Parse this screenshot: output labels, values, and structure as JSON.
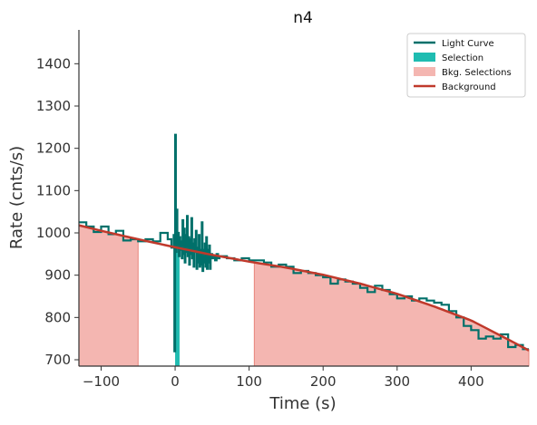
{
  "chart_data": {
    "type": "line",
    "title": "n4",
    "xlabel": "Time (s)",
    "ylabel": "Rate (cnts/s)",
    "xlim": [
      -130,
      478
    ],
    "ylim": [
      685,
      1480
    ],
    "xticks": [
      -100,
      0,
      100,
      200,
      300,
      400
    ],
    "xtick_labels": [
      "−100",
      "0",
      "100",
      "200",
      "300",
      "400"
    ],
    "yticks": [
      700,
      800,
      900,
      1000,
      1100,
      1200,
      1300,
      1400
    ],
    "ytick_labels": [
      "700",
      "800",
      "900",
      "1000",
      "1100",
      "1200",
      "1300",
      "1400"
    ],
    "grid": false,
    "legend_position": "top-right",
    "legend": [
      {
        "label": "Light Curve",
        "style": "line",
        "color": "#00706a"
      },
      {
        "label": "Selection",
        "style": "patch",
        "color": "#1fbcb1"
      },
      {
        "label": "Bkg. Selections",
        "style": "patch",
        "color": "#f4b6b1"
      },
      {
        "label": "Background",
        "style": "line",
        "color": "#c0392b"
      }
    ],
    "colors": {
      "light_curve": "#00706a",
      "selection": "#1fbcb1",
      "bkg_selection_fill": "#f4b6b1",
      "bkg_selection_edge": "#e8857c",
      "background": "#c0392b",
      "axis": "#333333"
    },
    "series": [
      {
        "name": "Light Curve",
        "style": "step",
        "x": [
          -130,
          -120,
          -110,
          -100,
          -90,
          -80,
          -70,
          -60,
          -50,
          -40,
          -30,
          -20,
          -10,
          -5,
          -2,
          -1,
          0,
          1,
          2,
          3,
          4,
          5,
          6,
          7,
          8,
          9,
          10,
          11,
          12,
          13,
          14,
          15,
          16,
          17,
          18,
          19,
          20,
          21,
          22,
          23,
          24,
          25,
          26,
          27,
          28,
          29,
          30,
          31,
          32,
          33,
          34,
          35,
          36,
          37,
          38,
          39,
          40,
          41,
          42,
          43,
          44,
          45,
          46,
          47,
          48,
          49,
          50,
          52,
          54,
          56,
          58,
          60,
          70,
          80,
          90,
          100,
          110,
          120,
          130,
          140,
          150,
          160,
          170,
          180,
          190,
          200,
          210,
          220,
          230,
          240,
          250,
          260,
          270,
          280,
          290,
          300,
          310,
          320,
          330,
          340,
          350,
          360,
          370,
          380,
          390,
          400,
          410,
          420,
          430,
          440,
          450,
          460,
          470,
          478
        ],
        "y": [
          1025,
          1015,
          1002,
          1015,
          997,
          1005,
          982,
          985,
          980,
          985,
          980,
          1000,
          985,
          965,
          995,
          720,
          1232,
          955,
          1055,
          965,
          1000,
          945,
          990,
          960,
          980,
          940,
          1030,
          950,
          1010,
          930,
          995,
          955,
          1040,
          945,
          990,
          925,
          985,
          950,
          1035,
          940,
          975,
          920,
          985,
          955,
          1005,
          915,
          965,
          930,
          995,
          920,
          960,
          925,
          1025,
          910,
          960,
          930,
          975,
          920,
          990,
          915,
          960,
          930,
          970,
          915,
          945,
          950,
          940,
          945,
          935,
          950,
          940,
          945,
          940,
          935,
          940,
          935,
          935,
          930,
          920,
          925,
          920,
          905,
          910,
          905,
          900,
          895,
          880,
          890,
          885,
          880,
          870,
          860,
          875,
          865,
          855,
          845,
          850,
          840,
          845,
          840,
          835,
          830,
          815,
          800,
          780,
          770,
          750,
          755,
          750,
          760,
          730,
          735,
          725,
          725
        ]
      },
      {
        "name": "Background",
        "style": "line",
        "x": [
          -130,
          -100,
          -50,
          0,
          50,
          100,
          150,
          200,
          250,
          300,
          350,
          400,
          450,
          478
        ],
        "y": [
          1018,
          1005,
          985,
          966,
          948,
          932,
          918,
          901,
          880,
          856,
          826,
          793,
          748,
          722
        ]
      }
    ],
    "selection": {
      "x0": 0,
      "x1": 6,
      "label": "Selection"
    },
    "bkg_selections": [
      {
        "x0": -130,
        "x1": -50,
        "label": "Bkg. Selections"
      },
      {
        "x0": 107,
        "x1": 478,
        "label": "Bkg. Selections"
      }
    ]
  }
}
